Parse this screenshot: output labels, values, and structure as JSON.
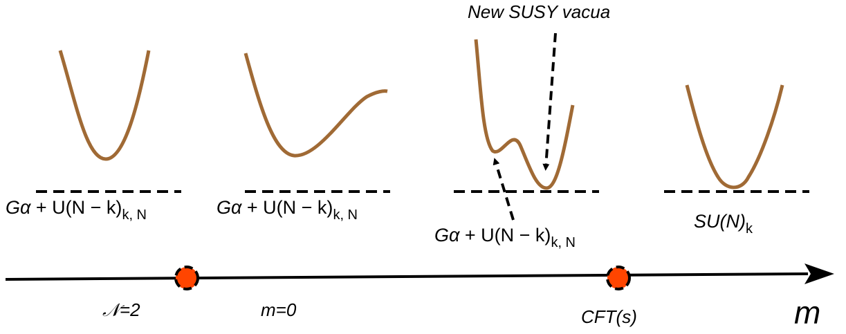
{
  "annotations": {
    "new_vacua": "New SUSY vacua"
  },
  "phases": [
    {
      "id": "phase-1",
      "group": "Gα",
      "term": " + U(N − k)",
      "sub": "k, N"
    },
    {
      "id": "phase-2",
      "group": "Gα",
      "term": " + U(N − k)",
      "sub": "k, N"
    },
    {
      "id": "phase-3",
      "group": "Gα",
      "term": " + U(N − k)",
      "sub": "k, N"
    },
    {
      "id": "phase-4",
      "group": "SU(N)",
      "term": "",
      "sub": "k"
    }
  ],
  "axis": {
    "variable": "m",
    "points": {
      "n2": "𝒩=2",
      "m0": "m=0",
      "cft": "CFT(s)"
    }
  },
  "colors": {
    "curve": "#a06a35",
    "marker": "#ff4500",
    "line": "#000000"
  }
}
